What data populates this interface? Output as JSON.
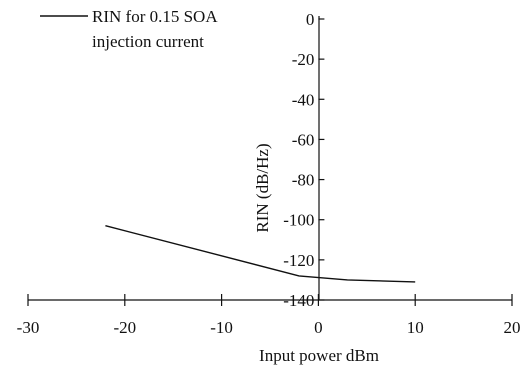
{
  "chart_data": {
    "type": "line",
    "title": "",
    "xlabel": "Input power dBm",
    "ylabel": "RIN (dB/Hz)",
    "xlim": [
      -30,
      20
    ],
    "ylim": [
      -140,
      0
    ],
    "xticks": [
      -30,
      -20,
      -10,
      0,
      10,
      20
    ],
    "yticks": [
      0,
      -20,
      -40,
      -60,
      -80,
      -100,
      -120,
      -140
    ],
    "xtick_labels": [
      "-30",
      "-20",
      "-10",
      "0",
      "10",
      "20"
    ],
    "ytick_labels": [
      "0",
      "-20",
      "-40",
      "-60",
      "-80",
      "-100",
      "-120",
      "-140"
    ],
    "grid": false,
    "legend_position": "top-left",
    "series": [
      {
        "name": "RIN for 0.15 SOA injection current",
        "legend_line1": "RIN for 0.15 SOA",
        "legend_line2": "injection current",
        "color": "#111111",
        "x": [
          -22,
          -2,
          3,
          10
        ],
        "y": [
          -103,
          -128,
          -130,
          -131
        ]
      }
    ]
  }
}
